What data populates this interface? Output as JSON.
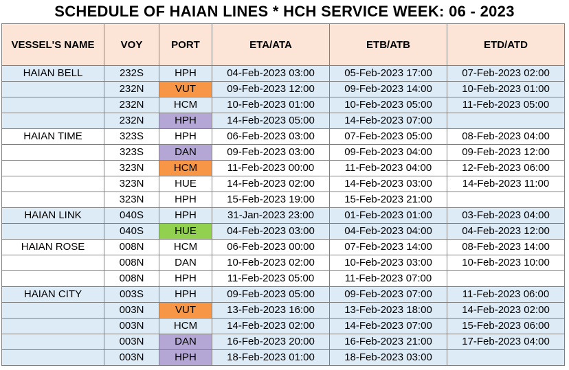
{
  "title": "SCHEDULE OF HAIAN LINES * HCH SERVICE WEEK: 06 - 2023",
  "colors": {
    "header_bg": "#fce4d6",
    "band_bg": "#ddebf7",
    "orange": "#f79646",
    "purple": "#b4a7d6",
    "green": "#92d050",
    "border": "#7f7f7f"
  },
  "headers": [
    "VESSEL'S NAME",
    "VOY",
    "PORT",
    "ETA/ATA",
    "ETB/ATB",
    "ETD/ATD"
  ],
  "rows": [
    {
      "vessel": "HAIAN BELL",
      "voy": "232S",
      "port": "HPH",
      "port_color": "",
      "eta": "04-Feb-2023 03:00",
      "etb": "05-Feb-2023 17:00",
      "etd": "07-Feb-2023 02:00",
      "band": true
    },
    {
      "vessel": "",
      "voy": "232N",
      "port": "VUT",
      "port_color": "orange",
      "eta": "09-Feb-2023 12:00",
      "etb": "09-Feb-2023 14:00",
      "etd": "10-Feb-2023 01:00",
      "band": true
    },
    {
      "vessel": "",
      "voy": "232N",
      "port": "HCM",
      "port_color": "",
      "eta": "10-Feb-2023 01:00",
      "etb": "10-Feb-2023 05:00",
      "etd": "11-Feb-2023 05:00",
      "band": true
    },
    {
      "vessel": "",
      "voy": "232N",
      "port": "HPH",
      "port_color": "purple",
      "eta": "14-Feb-2023 05:00",
      "etb": "14-Feb-2023 07:00",
      "etd": "",
      "band": true
    },
    {
      "vessel": "HAIAN TIME",
      "voy": "323S",
      "port": "HPH",
      "port_color": "",
      "eta": "06-Feb-2023 03:00",
      "etb": "07-Feb-2023 05:00",
      "etd": "08-Feb-2023 04:00",
      "band": false
    },
    {
      "vessel": "",
      "voy": "323S",
      "port": "DAN",
      "port_color": "purple",
      "eta": "09-Feb-2023 03:00",
      "etb": "09-Feb-2023 04:00",
      "etd": "09-Feb-2023 12:00",
      "band": false
    },
    {
      "vessel": "",
      "voy": "323N",
      "port": "HCM",
      "port_color": "orange",
      "eta": "11-Feb-2023 00:00",
      "etb": "11-Feb-2023 04:00",
      "etd": "12-Feb-2023 06:00",
      "band": false
    },
    {
      "vessel": "",
      "voy": "323N",
      "port": "HUE",
      "port_color": "",
      "eta": "14-Feb-2023 02:00",
      "etb": "14-Feb-2023 03:00",
      "etd": "14-Feb-2023 11:00",
      "band": false
    },
    {
      "vessel": "",
      "voy": "323N",
      "port": "HPH",
      "port_color": "",
      "eta": "15-Feb-2023 19:00",
      "etb": "15-Feb-2023 21:00",
      "etd": "",
      "band": false
    },
    {
      "vessel": "HAIAN LINK",
      "voy": "040S",
      "port": "HPH",
      "port_color": "",
      "eta": "31-Jan-2023 23:00",
      "etb": "01-Feb-2023 01:00",
      "etd": "03-Feb-2023 04:00",
      "band": true
    },
    {
      "vessel": "",
      "voy": "040S",
      "port": "HUE",
      "port_color": "green",
      "eta": "04-Feb-2023 03:00",
      "etb": "04-Feb-2023 04:00",
      "etd": "04-Feb-2023 12:00",
      "band": true
    },
    {
      "vessel": "HAIAN ROSE",
      "voy": "008N",
      "port": "HCM",
      "port_color": "",
      "eta": "06-Feb-2023 00:00",
      "etb": "07-Feb-2023 14:00",
      "etd": "08-Feb-2023 14:00",
      "band": false
    },
    {
      "vessel": "",
      "voy": "008N",
      "port": "DAN",
      "port_color": "",
      "eta": "10-Feb-2023 02:00",
      "etb": "10-Feb-2023 03:00",
      "etd": "10-Feb-2023 10:00",
      "band": false
    },
    {
      "vessel": "",
      "voy": "008N",
      "port": "HPH",
      "port_color": "",
      "eta": "11-Feb-2023 05:00",
      "etb": "11-Feb-2023 07:00",
      "etd": "",
      "band": false
    },
    {
      "vessel": "HAIAN CITY",
      "voy": "003S",
      "port": "HPH",
      "port_color": "",
      "eta": "09-Feb-2023 05:00",
      "etb": "09-Feb-2023 07:00",
      "etd": "11-Feb-2023 06:00",
      "band": true
    },
    {
      "vessel": "",
      "voy": "003N",
      "port": "VUT",
      "port_color": "orange",
      "eta": "13-Feb-2023 16:00",
      "etb": "13-Feb-2023 18:00",
      "etd": "14-Feb-2023 02:00",
      "band": true
    },
    {
      "vessel": "",
      "voy": "003N",
      "port": "HCM",
      "port_color": "",
      "eta": "14-Feb-2023 02:00",
      "etb": "14-Feb-2023 07:00",
      "etd": "15-Feb-2023 06:00",
      "band": true
    },
    {
      "vessel": "",
      "voy": "003N",
      "port": "DAN",
      "port_color": "purple",
      "eta": "16-Feb-2023 20:00",
      "etb": "16-Feb-2023 21:00",
      "etd": "17-Feb-2023 04:00",
      "band": true
    },
    {
      "vessel": "",
      "voy": "003N",
      "port": "HPH",
      "port_color": "purple",
      "eta": "18-Feb-2023 01:00",
      "etb": "18-Feb-2023 03:00",
      "etd": "",
      "band": true
    }
  ]
}
